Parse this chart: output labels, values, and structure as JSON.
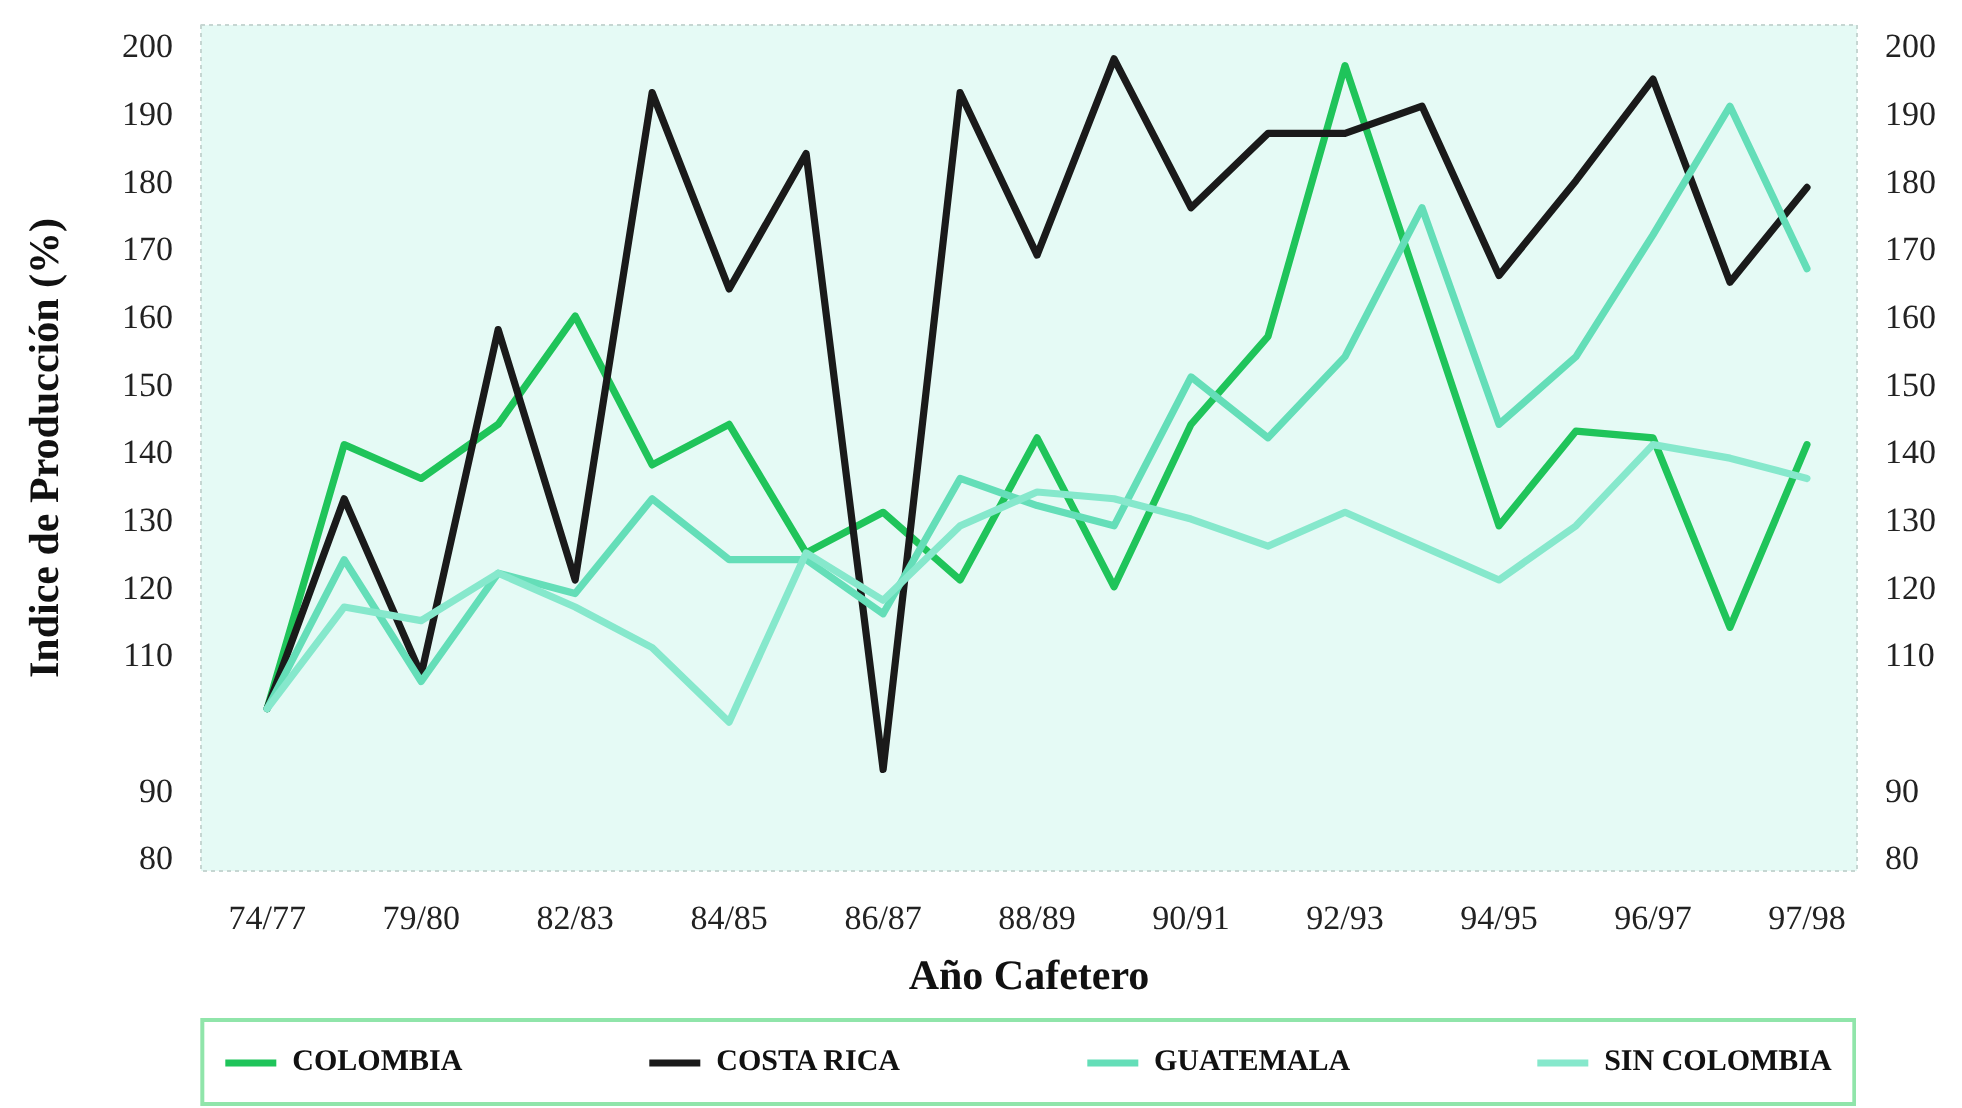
{
  "chart_data": {
    "type": "line",
    "categories": [
      "74/77",
      null,
      "79/80",
      null,
      "82/83",
      null,
      "84/85",
      null,
      "86/87",
      null,
      "88/89",
      null,
      "90/91",
      null,
      "92/93",
      null,
      "94/95",
      null,
      "96/97",
      null,
      "97/98"
    ],
    "xlabel": "Año Cafetero",
    "ylabel": "Indice de Producción (%)",
    "ylim": [
      78,
      203
    ],
    "yticks": [
      80,
      90,
      110,
      120,
      130,
      140,
      150,
      160,
      170,
      180,
      190,
      200
    ],
    "y2lim": [
      78,
      203
    ],
    "y2ticks": [
      80,
      90,
      110,
      120,
      130,
      140,
      150,
      160,
      170,
      180,
      190,
      200
    ],
    "legend": "bottom",
    "series": [
      {
        "name": "COLOMBIA",
        "color": "#1fc45a",
        "values": [
          102,
          141,
          136,
          144,
          160,
          138,
          144,
          125,
          131,
          121,
          142,
          120,
          144,
          157,
          197,
          163,
          129,
          143,
          142,
          114,
          141
        ]
      },
      {
        "name": "COSTA RICA",
        "color": "#1a1a1a",
        "values": [
          102,
          133,
          107,
          158,
          121,
          193,
          164,
          184,
          93,
          193,
          169,
          198,
          176,
          187,
          187,
          191,
          166,
          180,
          195,
          165,
          179
        ]
      },
      {
        "name": "GUATEMALA",
        "color": "#64deb8",
        "values": [
          102,
          124,
          106,
          122,
          119,
          133,
          124,
          124,
          116,
          136,
          132,
          129,
          151,
          142,
          154,
          176,
          144,
          154,
          172,
          191,
          167
        ]
      },
      {
        "name": "SIN COLOMBIA",
        "color": "#86e8cc",
        "values": [
          102,
          117,
          115,
          122,
          117,
          111,
          100,
          125,
          118,
          129,
          134,
          133,
          130,
          126,
          131,
          126,
          121,
          129,
          141,
          139,
          136
        ]
      }
    ]
  }
}
